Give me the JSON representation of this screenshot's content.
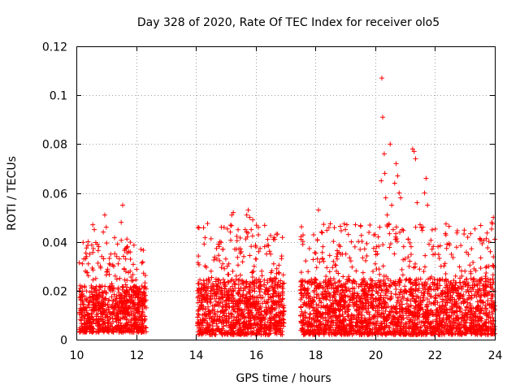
{
  "chart_data": {
    "type": "scatter",
    "title": "Day 328 of 2020, Rate Of TEC Index for receiver olo5",
    "xlabel": "GPS time / hours",
    "ylabel": "ROTI / TECUs",
    "xlim": [
      10,
      24
    ],
    "ylim": [
      0,
      0.12
    ],
    "x_ticks": [
      10,
      12,
      14,
      16,
      18,
      20,
      22,
      24
    ],
    "x_tick_labels": [
      "10",
      "12",
      "14",
      "16",
      "18",
      "20",
      "22",
      "24"
    ],
    "y_ticks": [
      0,
      0.02,
      0.04,
      0.06,
      0.08,
      0.1,
      0.12
    ],
    "y_tick_labels": [
      "0",
      "0.02",
      "0.04",
      "0.06",
      "0.08",
      "0.1",
      "0.12"
    ],
    "grid": true,
    "marker": "+",
    "color": "#ff0000",
    "series": [
      {
        "name": "ROTI",
        "segments": [
          {
            "x_start": 10.1,
            "x_end": 12.35,
            "typical_range": [
              0.003,
              0.022
            ],
            "peak": 0.055
          },
          {
            "x_start": 14.05,
            "x_end": 16.95,
            "typical_range": [
              0.002,
              0.025
            ],
            "peak": 0.053
          },
          {
            "x_start": 17.5,
            "x_end": 24.0,
            "typical_range": [
              0.002,
              0.025
            ],
            "peak": 0.107
          }
        ],
        "points": [
          [
            10.15,
            0.012
          ],
          [
            10.2,
            0.031
          ],
          [
            10.25,
            0.033
          ],
          [
            10.3,
            0.028
          ],
          [
            10.35,
            0.016
          ],
          [
            10.4,
            0.031
          ],
          [
            10.45,
            0.035
          ],
          [
            10.5,
            0.022
          ],
          [
            10.55,
            0.047
          ],
          [
            10.6,
            0.045
          ],
          [
            10.65,
            0.025
          ],
          [
            10.7,
            0.039
          ],
          [
            10.75,
            0.038
          ],
          [
            10.8,
            0.03
          ],
          [
            10.85,
            0.034
          ],
          [
            10.9,
            0.044
          ],
          [
            10.95,
            0.051
          ],
          [
            11.0,
            0.046
          ],
          [
            11.05,
            0.028
          ],
          [
            11.1,
            0.031
          ],
          [
            11.15,
            0.035
          ],
          [
            11.2,
            0.022
          ],
          [
            11.25,
            0.03
          ],
          [
            11.3,
            0.026
          ],
          [
            11.35,
            0.034
          ],
          [
            11.4,
            0.031
          ],
          [
            11.45,
            0.025
          ],
          [
            11.5,
            0.048
          ],
          [
            11.55,
            0.055
          ],
          [
            11.6,
            0.029
          ],
          [
            11.65,
            0.033
          ],
          [
            11.7,
            0.038
          ],
          [
            11.75,
            0.036
          ],
          [
            11.8,
            0.028
          ],
          [
            11.85,
            0.024
          ],
          [
            11.9,
            0.02
          ],
          [
            11.95,
            0.022
          ],
          [
            12.0,
            0.018
          ],
          [
            12.1,
            0.021
          ],
          [
            12.2,
            0.017
          ],
          [
            12.3,
            0.016
          ],
          [
            14.1,
            0.01
          ],
          [
            14.2,
            0.013
          ],
          [
            14.3,
            0.016
          ],
          [
            14.4,
            0.018
          ],
          [
            14.5,
            0.02
          ],
          [
            14.6,
            0.022
          ],
          [
            14.7,
            0.033
          ],
          [
            14.75,
            0.039
          ],
          [
            14.8,
            0.04
          ],
          [
            14.85,
            0.046
          ],
          [
            14.9,
            0.037
          ],
          [
            14.95,
            0.029
          ],
          [
            15.0,
            0.033
          ],
          [
            15.05,
            0.03
          ],
          [
            15.1,
            0.031
          ],
          [
            15.15,
            0.044
          ],
          [
            15.2,
            0.051
          ],
          [
            15.25,
            0.052
          ],
          [
            15.3,
            0.037
          ],
          [
            15.35,
            0.026
          ],
          [
            15.4,
            0.019
          ],
          [
            15.45,
            0.02
          ],
          [
            15.5,
            0.021
          ],
          [
            15.55,
            0.023
          ],
          [
            15.6,
            0.034
          ],
          [
            15.65,
            0.045
          ],
          [
            15.7,
            0.051
          ],
          [
            15.75,
            0.053
          ],
          [
            15.8,
            0.05
          ],
          [
            15.85,
            0.045
          ],
          [
            15.9,
            0.049
          ],
          [
            15.95,
            0.03
          ],
          [
            16.0,
            0.033
          ],
          [
            16.1,
            0.036
          ],
          [
            16.2,
            0.028
          ],
          [
            16.3,
            0.038
          ],
          [
            16.4,
            0.041
          ],
          [
            16.5,
            0.035
          ],
          [
            16.6,
            0.031
          ],
          [
            16.7,
            0.027
          ],
          [
            16.8,
            0.022
          ],
          [
            16.9,
            0.019
          ],
          [
            17.6,
            0.01
          ],
          [
            17.8,
            0.013
          ],
          [
            17.9,
            0.016
          ],
          [
            18.1,
            0.053
          ],
          [
            18.2,
            0.044
          ],
          [
            18.4,
            0.014
          ],
          [
            18.5,
            0.025
          ],
          [
            18.6,
            0.032
          ],
          [
            18.7,
            0.028
          ],
          [
            18.8,
            0.024
          ],
          [
            18.9,
            0.035
          ],
          [
            19.0,
            0.045
          ],
          [
            19.05,
            0.047
          ],
          [
            19.1,
            0.043
          ],
          [
            19.2,
            0.04
          ],
          [
            19.3,
            0.021
          ],
          [
            19.5,
            0.017
          ],
          [
            19.7,
            0.016
          ],
          [
            19.9,
            0.02
          ],
          [
            20.0,
            0.031
          ],
          [
            20.05,
            0.038
          ],
          [
            20.1,
            0.042
          ],
          [
            20.15,
            0.046
          ],
          [
            20.2,
            0.065
          ],
          [
            20.22,
            0.107
          ],
          [
            20.25,
            0.091
          ],
          [
            20.3,
            0.076
          ],
          [
            20.32,
            0.068
          ],
          [
            20.35,
            0.058
          ],
          [
            20.4,
            0.051
          ],
          [
            20.45,
            0.047
          ],
          [
            20.5,
            0.08
          ],
          [
            20.55,
            0.055
          ],
          [
            20.6,
            0.045
          ],
          [
            20.65,
            0.064
          ],
          [
            20.7,
            0.072
          ],
          [
            20.75,
            0.067
          ],
          [
            20.8,
            0.06
          ],
          [
            20.85,
            0.058
          ],
          [
            20.9,
            0.045
          ],
          [
            20.95,
            0.038
          ],
          [
            21.0,
            0.033
          ],
          [
            21.1,
            0.041
          ],
          [
            21.2,
            0.038
          ],
          [
            21.25,
            0.078
          ],
          [
            21.3,
            0.077
          ],
          [
            21.35,
            0.074
          ],
          [
            21.4,
            0.056
          ],
          [
            21.5,
            0.047
          ],
          [
            21.6,
            0.046
          ],
          [
            21.65,
            0.06
          ],
          [
            21.7,
            0.066
          ],
          [
            21.75,
            0.055
          ],
          [
            21.8,
            0.039
          ],
          [
            21.9,
            0.037
          ],
          [
            22.0,
            0.035
          ],
          [
            22.1,
            0.038
          ],
          [
            22.2,
            0.03
          ],
          [
            22.4,
            0.039
          ],
          [
            22.6,
            0.022
          ],
          [
            22.8,
            0.021
          ],
          [
            23.0,
            0.028
          ],
          [
            23.2,
            0.027
          ],
          [
            23.4,
            0.024
          ],
          [
            23.6,
            0.022
          ],
          [
            23.8,
            0.03
          ],
          [
            23.85,
            0.036
          ],
          [
            23.9,
            0.048
          ],
          [
            23.95,
            0.05
          ],
          [
            24.0,
            0.041
          ]
        ]
      }
    ]
  }
}
